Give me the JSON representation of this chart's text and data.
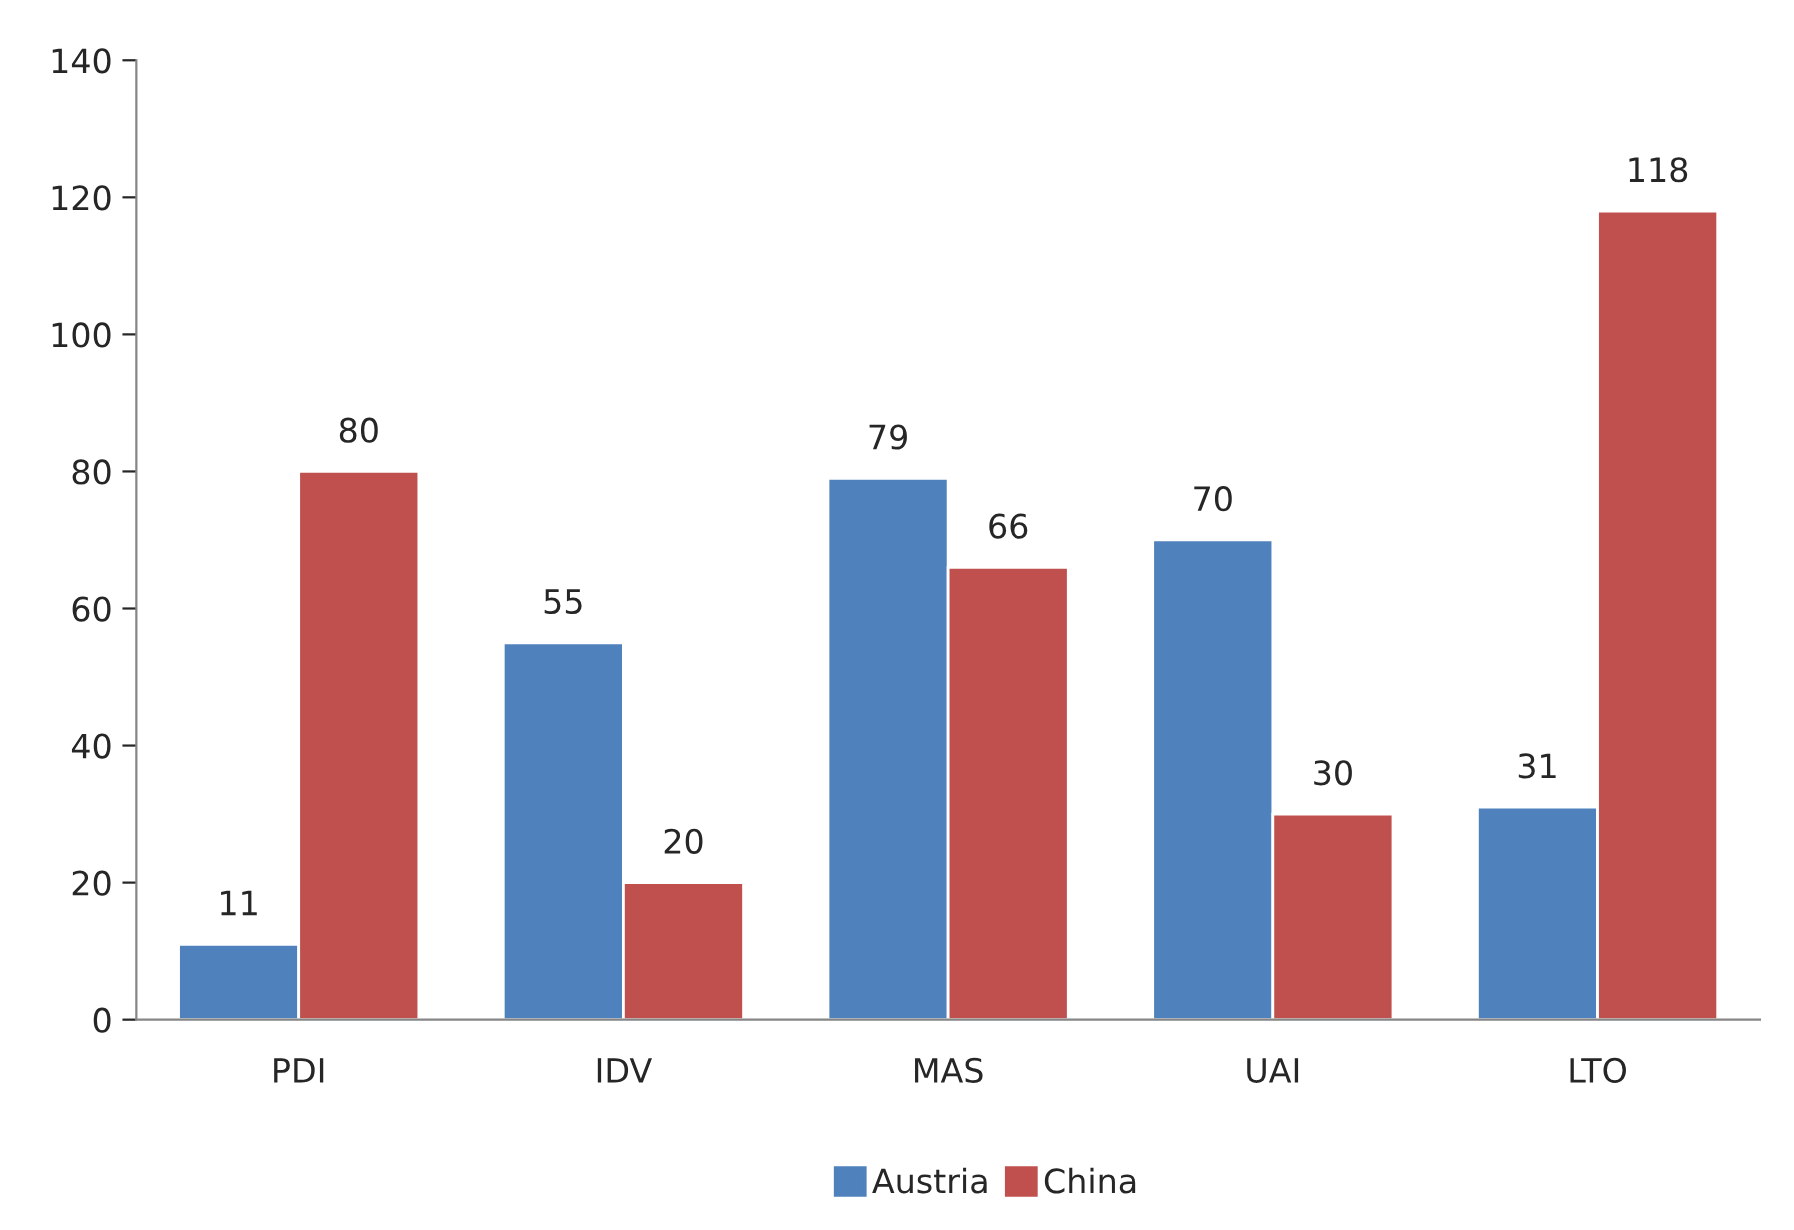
{
  "chart_data": {
    "type": "bar",
    "categories": [
      "PDI",
      "IDV",
      "MAS",
      "UAI",
      "LTO"
    ],
    "series": [
      {
        "name": "Austria",
        "color": "#4f81bd",
        "values": [
          11,
          55,
          79,
          70,
          31
        ]
      },
      {
        "name": "China",
        "color": "#c0504d",
        "values": [
          80,
          20,
          66,
          30,
          118
        ]
      }
    ],
    "ylim": [
      0,
      140
    ],
    "yticks": [
      0,
      20,
      40,
      60,
      80,
      100,
      120,
      140
    ],
    "data_labels": true,
    "grid": false,
    "legend": "bottom"
  }
}
